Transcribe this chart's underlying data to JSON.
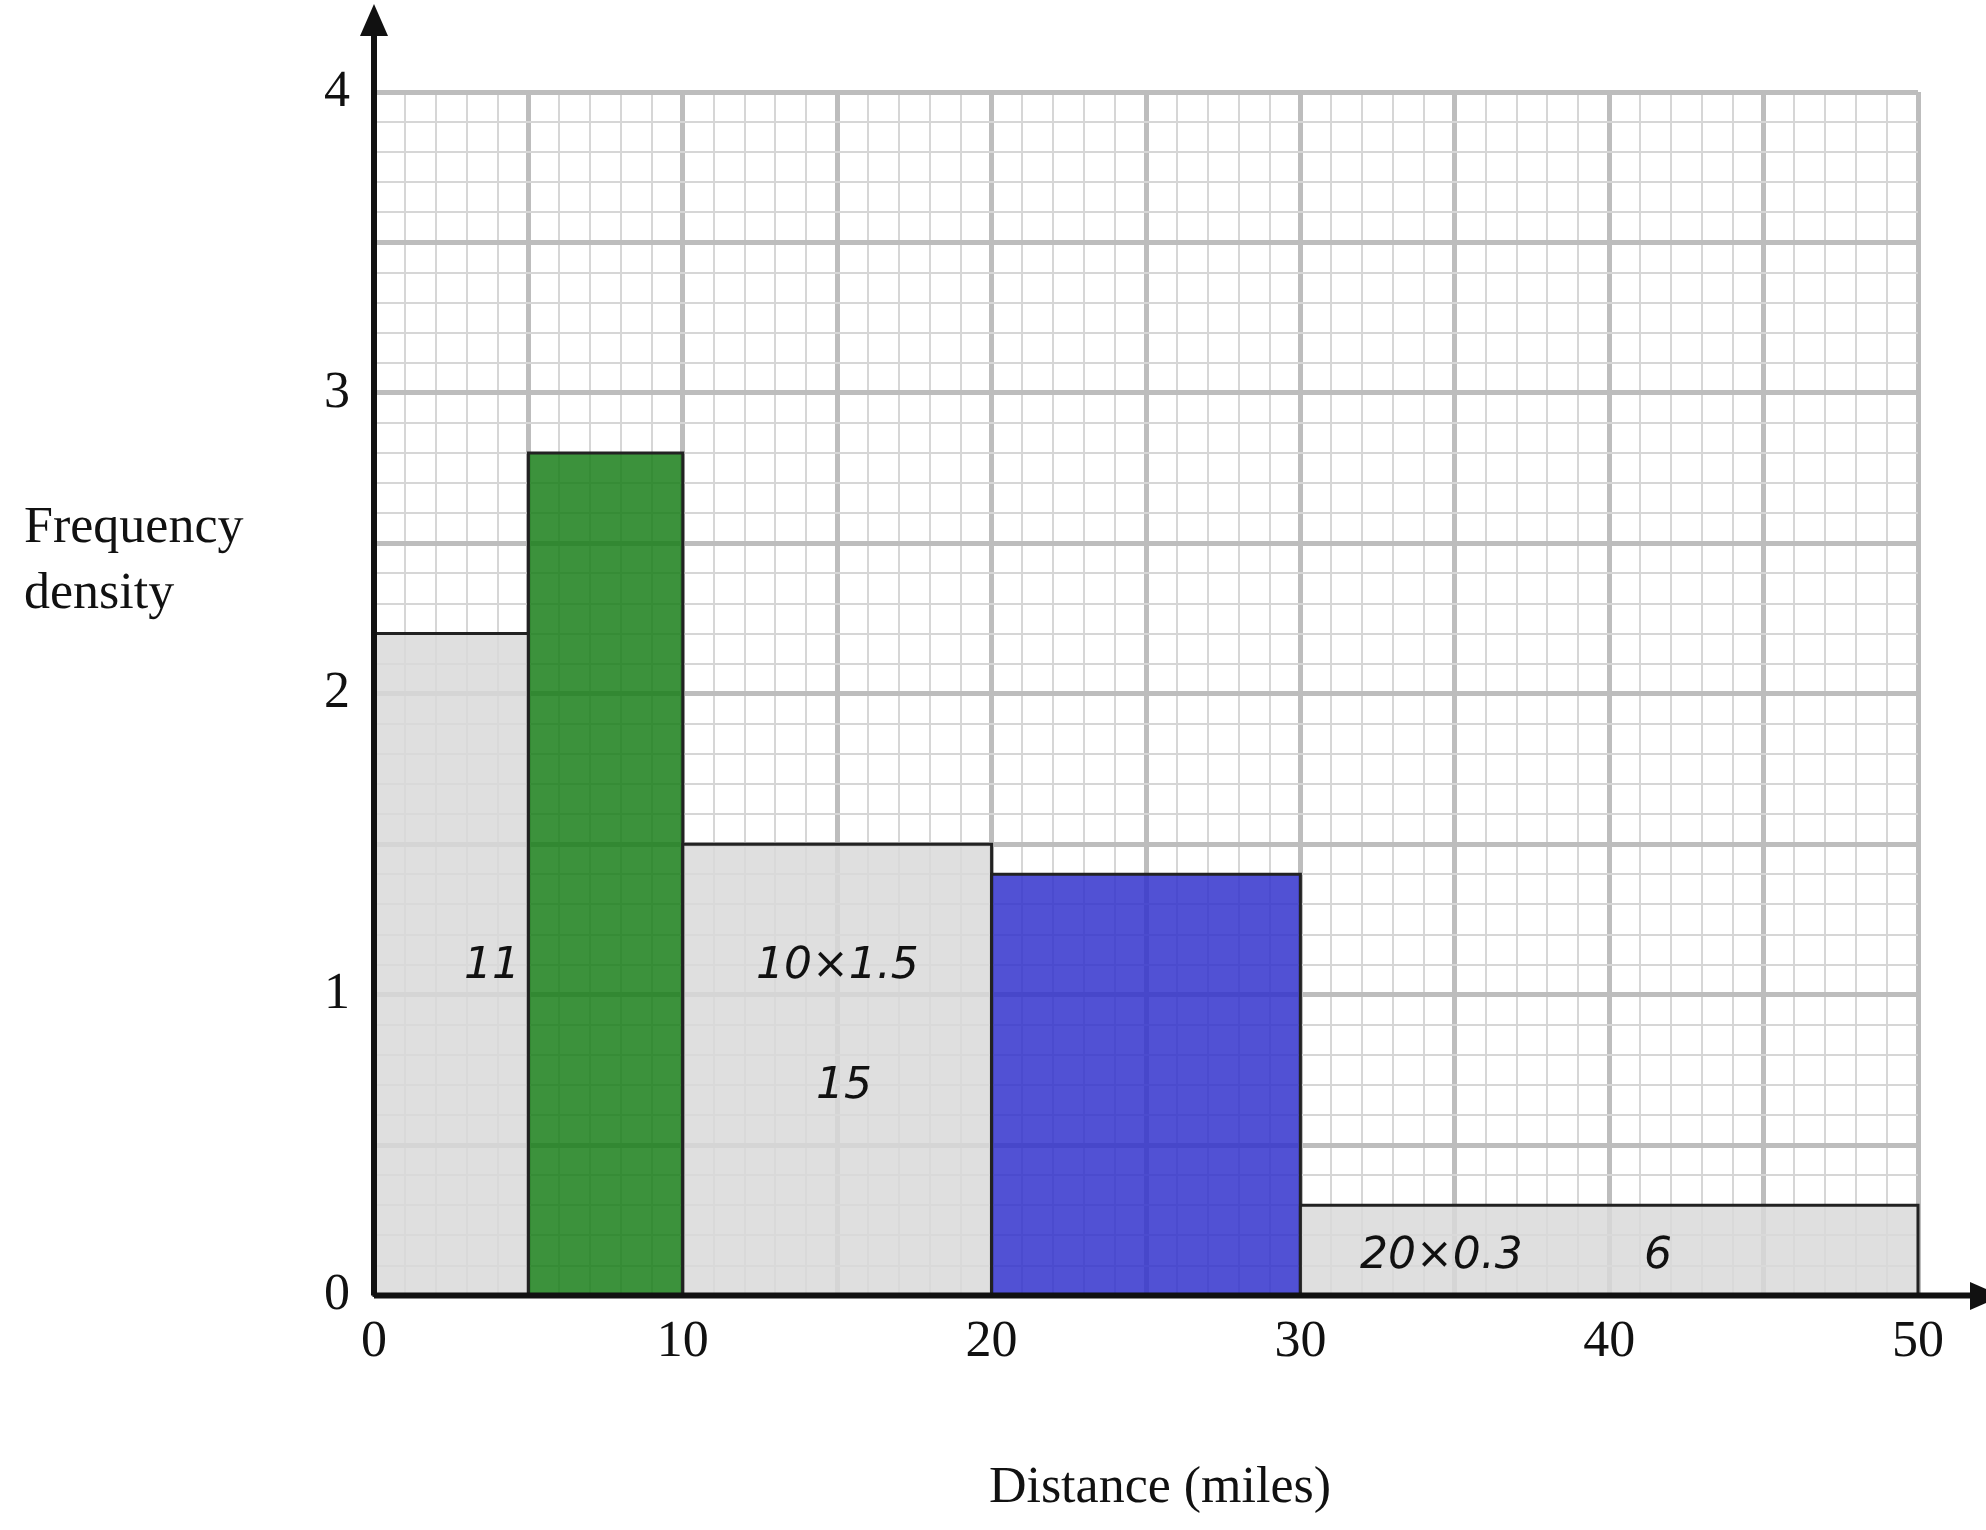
{
  "chart_data": {
    "type": "histogram",
    "xlabel": "Distance (miles)",
    "ylabel": "Frequency density",
    "bins": [
      0,
      5,
      10,
      20,
      30,
      50
    ],
    "values": [
      2.2,
      2.8,
      1.5,
      1.4,
      0.3
    ],
    "colors": [
      "#d9d9d9",
      "#1a7f1a",
      "#d9d9d9",
      "#3333cc",
      "#d9d9d9"
    ],
    "xlim": [
      0,
      50
    ],
    "ylim": [
      0,
      4
    ],
    "xticks": [
      0,
      {
        "value": 1,
        "label": null
      },
      {
        "value": 2,
        "label": null
      },
      {
        "value": 3,
        "label": null
      },
      {
        "value": 4,
        "label": null
      },
      {
        "value": 5,
        "label": null
      },
      {
        "value": 6,
        "label": null
      },
      {
        "value": 7,
        "label": null
      },
      {
        "value": 8,
        "label": null
      },
      {
        "value": 9,
        "label": null
      },
      10,
      {
        "value": 11,
        "label": null
      },
      {
        "value": 12,
        "label": null
      },
      {
        "value": 13,
        "label": null
      },
      {
        "value": 14,
        "label": null
      },
      {
        "value": 15,
        "label": null
      },
      {
        "value": 16,
        "label": null
      },
      {
        "value": 17,
        "label": null
      },
      {
        "value": 18,
        "label": null
      },
      {
        "value": 19,
        "label": null
      },
      20,
      {
        "value": 21,
        "label": null
      },
      {
        "value": 22,
        "label": null
      },
      {
        "value": 23,
        "label": null
      },
      {
        "value": 24,
        "label": null
      },
      {
        "value": 25,
        "label": null
      },
      {
        "value": 26,
        "label": null
      },
      {
        "value": 27,
        "label": null
      },
      {
        "value": 28,
        "label": null
      },
      {
        "value": 29,
        "label": null
      },
      30,
      {
        "value": 31,
        "label": null
      },
      {
        "value": 32,
        "label": null
      },
      {
        "value": 33,
        "label": null
      },
      {
        "value": 34,
        "label": null
      },
      {
        "value": 35,
        "label": null
      },
      {
        "value": 36,
        "label": null
      },
      {
        "value": 37,
        "label": null
      },
      {
        "value": 38,
        "label": null
      },
      {
        "value": 39,
        "label": null
      },
      40,
      {
        "value": 41,
        "label": null
      },
      {
        "value": 42,
        "label": null
      },
      {
        "value": 43,
        "label": null
      },
      {
        "value": 44,
        "label": null
      },
      {
        "value": 45,
        "label": null
      },
      {
        "value": 46,
        "label": null
      },
      {
        "value": 47,
        "label": null
      },
      {
        "value": 48,
        "label": null
      },
      {
        "value": 49,
        "label": null
      },
      50
    ],
    "yticks": [
      0,
      {
        "value": 0.1,
        "label": null
      },
      {
        "value": 0.2,
        "label": null
      },
      {
        "value": 0.3,
        "label": null
      },
      {
        "value": 0.4,
        "label": null
      },
      {
        "value": 0.5,
        "label": null
      },
      {
        "value": 0.6,
        "label": null
      },
      {
        "value": 0.7,
        "label": null
      },
      {
        "value": 0.8,
        "label": null
      },
      {
        "value": 0.9,
        "label": null
      },
      1,
      {
        "value": 1.1,
        "label": null
      },
      {
        "value": 1.2,
        "label": null
      },
      {
        "value": 1.3,
        "label": null
      },
      {
        "value": 1.4,
        "label": null
      },
      {
        "value": 1.5,
        "label": null
      },
      {
        "value": 1.6,
        "label": null
      },
      {
        "value": 1.7,
        "label": null
      },
      {
        "value": 1.8,
        "label": null
      },
      {
        "value": 1.9,
        "label": null
      },
      2,
      {
        "value": 2.1,
        "label": null
      },
      {
        "value": 2.2,
        "label": null
      },
      {
        "value": 2.3,
        "label": null
      },
      {
        "value": 2.4,
        "label": null
      },
      {
        "value": 2.5,
        "label": null
      },
      {
        "value": 2.6,
        "label": null
      },
      {
        "value": 2.7,
        "label": null
      },
      {
        "value": 2.8,
        "label": null
      },
      {
        "value": 2.9,
        "label": null
      },
      3,
      {
        "value": 3.1,
        "label": null
      },
      {
        "value": 3.2,
        "label": null
      },
      {
        "value": 3.3,
        "label": null
      },
      {
        "value": 3.4,
        "label": null
      },
      {
        "value": 3.5,
        "label": null
      },
      {
        "value": 3.6,
        "label": null
      },
      {
        "value": 3.7,
        "label": null
      },
      {
        "value": 3.8,
        "label": null
      },
      {
        "value": 3.9,
        "label": null
      },
      4
    ],
    "grid": true,
    "annotations": [
      "11",
      "10×1.5",
      "15",
      "20×0.3",
      "6"
    ]
  }
}
